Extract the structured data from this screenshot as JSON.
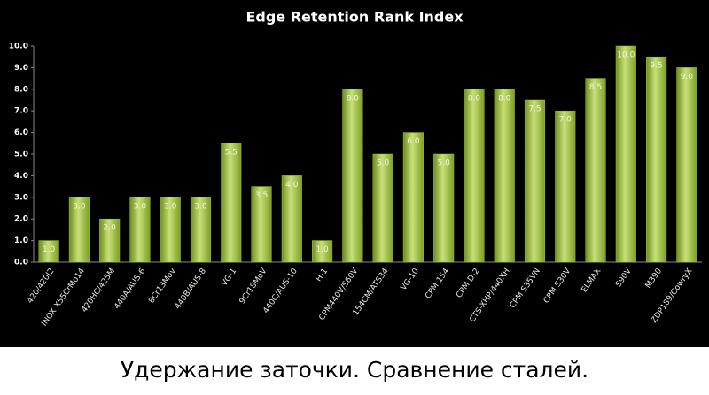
{
  "chart_data": {
    "type": "bar",
    "title": "Edge Retention Rank Index",
    "subtitle": "Удержание заточки. Сравнение сталей.",
    "categories": [
      "420/420J2",
      "INOX X55CrMo14",
      "420HC/425M",
      "440A/AUS-6",
      "8Cr13Mov",
      "440B/AUS-8",
      "VG-1",
      "9Cr18MoV",
      "440C/AUS-10",
      "H-1",
      "CPM440V/S60V",
      "154CM/ATS34",
      "VG-10",
      "CPM 154",
      "CPM D-2",
      "CTS-XHP/440XH",
      "CPM S35VN",
      "CPM S30V",
      "ELMAX",
      "S90V",
      "M390",
      "ZDP189/CowryX"
    ],
    "values": [
      1,
      3,
      2,
      3,
      3,
      3,
      5.5,
      3.5,
      4,
      1,
      8,
      5,
      6,
      5,
      8,
      8,
      7.5,
      7,
      8.5,
      10,
      9.5,
      9
    ],
    "value_labels": [
      "1.0",
      "3.0",
      "2.0",
      "3.0",
      "3.0",
      "3.0",
      "5.5",
      "3.5",
      "4.0",
      "1.0",
      "8.0",
      "5.0",
      "6.0",
      "5.0",
      "8.0",
      "8.0",
      "7.5",
      "7.0",
      "8.5",
      "10.0",
      "9.5",
      "9.0"
    ],
    "color": "#9ec23a",
    "ylim": [
      0,
      10
    ],
    "yticks": [
      {
        "value": 0,
        "label": "0.0"
      },
      {
        "value": 1,
        "label": "1.0"
      },
      {
        "value": 2,
        "label": "2.0"
      },
      {
        "value": 3,
        "label": "3.0"
      },
      {
        "value": 4,
        "label": "4.0"
      },
      {
        "value": 5,
        "label": "5.0"
      },
      {
        "value": 6,
        "label": "6.0"
      },
      {
        "value": 7,
        "label": "7.0"
      },
      {
        "value": 8,
        "label": "8.0"
      },
      {
        "value": 9,
        "label": "9.0"
      },
      {
        "value": 10,
        "label": "10.0"
      }
    ],
    "grid": false
  }
}
